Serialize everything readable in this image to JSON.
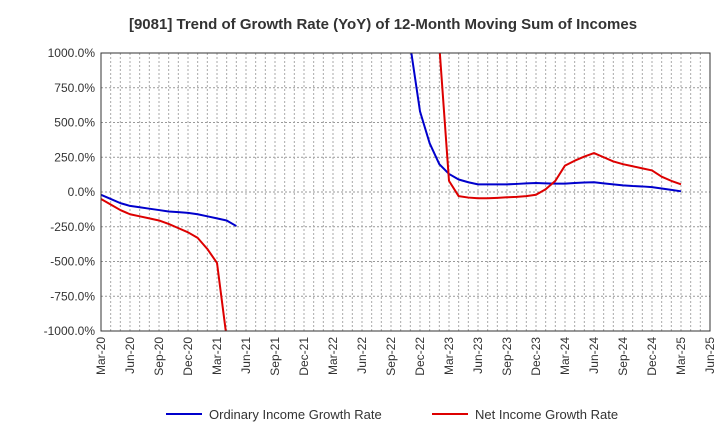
{
  "chart_data": {
    "type": "line",
    "title": "[9081]  Trend of Growth Rate (YoY) of 12-Month Moving Sum of Incomes",
    "xlabel": "",
    "ylabel": "",
    "ylim": [
      -1000,
      1000
    ],
    "y_ticks": [
      1000,
      750,
      500,
      250,
      0,
      -250,
      -500,
      -750,
      -1000
    ],
    "y_tick_labels": [
      "1000.0%",
      "750.0%",
      "500.0%",
      "250.0%",
      "0.0%",
      "-250.0%",
      "-500.0%",
      "-750.0%",
      "-1000.0%"
    ],
    "x_tick_labels": [
      "Mar-20",
      "Jun-20",
      "Sep-20",
      "Dec-20",
      "Mar-21",
      "Jun-21",
      "Sep-21",
      "Dec-21",
      "Mar-22",
      "Jun-22",
      "Sep-22",
      "Dec-22",
      "Mar-23",
      "Jun-23",
      "Sep-23",
      "Dec-23",
      "Mar-24",
      "Jun-24",
      "Sep-24",
      "Dec-24",
      "Mar-25",
      "Jun-25"
    ],
    "grid": true,
    "legend_position": "bottom",
    "series": [
      {
        "name": "Ordinary Income Growth Rate",
        "color": "#0000cc",
        "points": [
          [
            "Mar-20",
            -20
          ],
          [
            "Apr-20",
            -50
          ],
          [
            "May-20",
            -80
          ],
          [
            "Jun-20",
            -100
          ],
          [
            "Jul-20",
            -110
          ],
          [
            "Aug-20",
            -120
          ],
          [
            "Sep-20",
            -130
          ],
          [
            "Oct-20",
            -140
          ],
          [
            "Nov-20",
            -145
          ],
          [
            "Dec-20",
            -150
          ],
          [
            "Jan-21",
            -160
          ],
          [
            "Feb-21",
            -175
          ],
          [
            "Mar-21",
            -190
          ],
          [
            "Apr-21",
            -205
          ],
          [
            "May-21",
            -245
          ],
          [
            "Nov-22",
            1050
          ],
          [
            "Dec-22",
            580
          ],
          [
            "Jan-23",
            350
          ],
          [
            "Feb-23",
            200
          ],
          [
            "Mar-23",
            130
          ],
          [
            "Apr-23",
            90
          ],
          [
            "May-23",
            70
          ],
          [
            "Jun-23",
            55
          ],
          [
            "Jul-23",
            55
          ],
          [
            "Aug-23",
            55
          ],
          [
            "Sep-23",
            55
          ],
          [
            "Oct-23",
            58
          ],
          [
            "Nov-23",
            62
          ],
          [
            "Dec-23",
            65
          ],
          [
            "Jan-24",
            62
          ],
          [
            "Feb-24",
            60
          ],
          [
            "Mar-24",
            60
          ],
          [
            "Apr-24",
            65
          ],
          [
            "May-24",
            68
          ],
          [
            "Jun-24",
            70
          ],
          [
            "Jul-24",
            62
          ],
          [
            "Aug-24",
            55
          ],
          [
            "Sep-24",
            48
          ],
          [
            "Oct-24",
            43
          ],
          [
            "Nov-24",
            40
          ],
          [
            "Dec-24",
            35
          ],
          [
            "Jan-25",
            25
          ],
          [
            "Feb-25",
            15
          ],
          [
            "Mar-25",
            5
          ]
        ]
      },
      {
        "name": "Net Income Growth Rate",
        "color": "#dd0000",
        "points": [
          [
            "Mar-20",
            -50
          ],
          [
            "Apr-20",
            -90
          ],
          [
            "May-20",
            -130
          ],
          [
            "Jun-20",
            -160
          ],
          [
            "Jul-20",
            -175
          ],
          [
            "Aug-20",
            -190
          ],
          [
            "Sep-20",
            -205
          ],
          [
            "Oct-20",
            -230
          ],
          [
            "Nov-20",
            -260
          ],
          [
            "Dec-20",
            -290
          ],
          [
            "Jan-21",
            -330
          ],
          [
            "Feb-21",
            -410
          ],
          [
            "Mar-21",
            -510
          ],
          [
            "Apr-21",
            -1050
          ],
          [
            "Feb-23",
            1050
          ],
          [
            "Mar-23",
            80
          ],
          [
            "Apr-23",
            -30
          ],
          [
            "May-23",
            -40
          ],
          [
            "Jun-23",
            -45
          ],
          [
            "Jul-23",
            -45
          ],
          [
            "Aug-23",
            -42
          ],
          [
            "Sep-23",
            -38
          ],
          [
            "Oct-23",
            -35
          ],
          [
            "Nov-23",
            -30
          ],
          [
            "Dec-23",
            -20
          ],
          [
            "Jan-24",
            20
          ],
          [
            "Feb-24",
            80
          ],
          [
            "Mar-24",
            190
          ],
          [
            "Apr-24",
            225
          ],
          [
            "May-24",
            255
          ],
          [
            "Jun-24",
            280
          ],
          [
            "Jul-24",
            250
          ],
          [
            "Aug-24",
            220
          ],
          [
            "Sep-24",
            200
          ],
          [
            "Oct-24",
            185
          ],
          [
            "Nov-24",
            170
          ],
          [
            "Dec-24",
            155
          ],
          [
            "Jan-25",
            110
          ],
          [
            "Feb-25",
            80
          ],
          [
            "Mar-25",
            55
          ]
        ]
      }
    ]
  }
}
